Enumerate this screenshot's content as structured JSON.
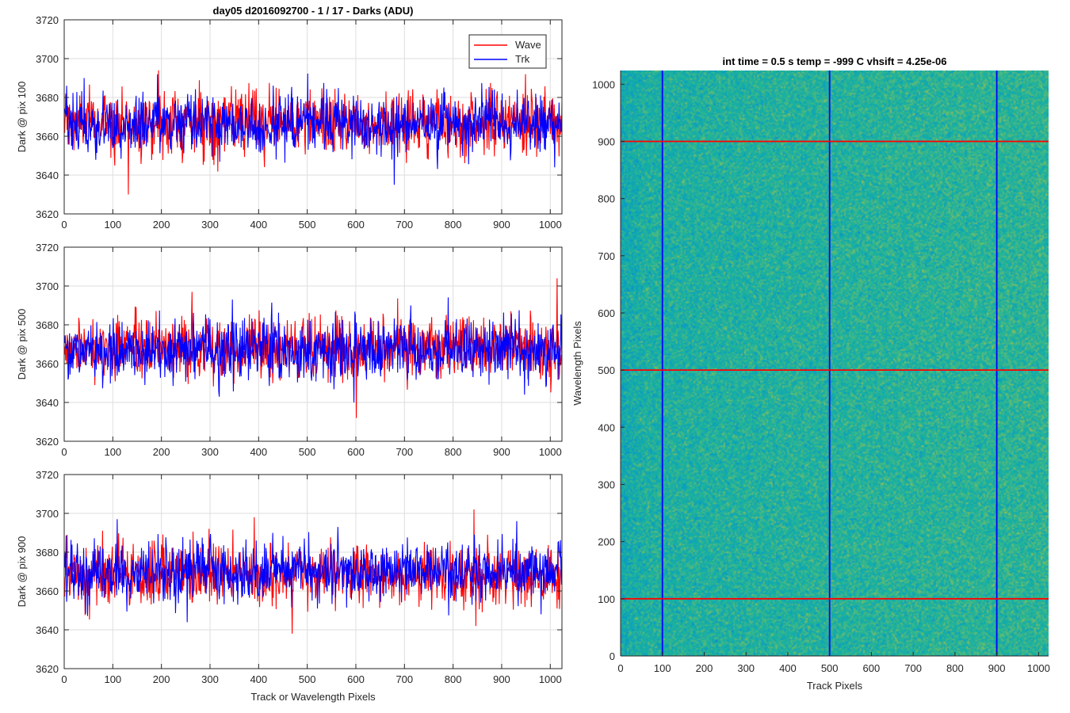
{
  "chart_data": [
    {
      "type": "line",
      "title": "day05 d2016092700 - 1 / 17 - Darks (ADU)",
      "xlabel": "",
      "ylabel": "Dark @ pix 100",
      "xlim": [
        0,
        1024
      ],
      "ylim": [
        3620,
        3720
      ],
      "xticks": [
        0,
        100,
        200,
        300,
        400,
        500,
        600,
        700,
        800,
        900,
        1000
      ],
      "yticks": [
        3620,
        3640,
        3660,
        3680,
        3700,
        3720
      ],
      "grid": true,
      "legend": "top-right",
      "series": [
        {
          "name": "Wave",
          "color": "#ff0000",
          "mean": 3667,
          "sd": 8,
          "extremes": [
            [
              131,
              3630
            ],
            [
              193,
              3694
            ],
            [
              948,
              3692
            ]
          ]
        },
        {
          "name": "Trk",
          "color": "#0000ff",
          "mean": 3666,
          "sd": 7.5,
          "extremes": [
            [
              678,
              3635
            ],
            [
              40,
              3690
            ],
            [
              1008,
              3644
            ]
          ]
        }
      ]
    },
    {
      "type": "line",
      "title": "",
      "xlabel": "",
      "ylabel": "Dark @ pix 500",
      "xlim": [
        0,
        1024
      ],
      "ylim": [
        3620,
        3720
      ],
      "xticks": [
        0,
        100,
        200,
        300,
        400,
        500,
        600,
        700,
        800,
        900,
        1000
      ],
      "yticks": [
        3620,
        3640,
        3660,
        3680,
        3700,
        3720
      ],
      "grid": true,
      "series": [
        {
          "name": "Wave",
          "color": "#ff0000",
          "mean": 3668,
          "sd": 8,
          "extremes": [
            [
              600,
              3632
            ],
            [
              262,
              3697
            ],
            [
              1013,
              3704
            ]
          ]
        },
        {
          "name": "Trk",
          "color": "#0000ff",
          "mean": 3667,
          "sd": 7.5,
          "extremes": [
            [
              595,
              3640
            ],
            [
              345,
              3693
            ],
            [
              990,
              3648
            ]
          ]
        }
      ]
    },
    {
      "type": "line",
      "title": "",
      "xlabel": "Track or Wavelength Pixels",
      "ylabel": "Dark @ pix 900",
      "xlim": [
        0,
        1024
      ],
      "ylim": [
        3620,
        3720
      ],
      "xticks": [
        0,
        100,
        200,
        300,
        400,
        500,
        600,
        700,
        800,
        900,
        1000
      ],
      "yticks": [
        3620,
        3640,
        3660,
        3680,
        3700,
        3720
      ],
      "grid": true,
      "series": [
        {
          "name": "Wave",
          "color": "#ff0000",
          "mean": 3668,
          "sd": 8,
          "extremes": [
            [
              468,
              3638
            ],
            [
              842,
              3702
            ],
            [
              390,
              3698
            ]
          ]
        },
        {
          "name": "Trk",
          "color": "#0000ff",
          "mean": 3670,
          "sd": 7.5,
          "extremes": [
            [
              108,
              3697
            ],
            [
              930,
              3696
            ],
            [
              980,
              3648
            ]
          ]
        }
      ]
    },
    {
      "type": "heatmap",
      "title": "int time = 0.5 s   temp = -999 C   vhsift = 4.25e-06",
      "xlabel": "Track Pixels",
      "ylabel": "Wavelength Pixels",
      "xlim": [
        0,
        1024
      ],
      "ylim": [
        0,
        1024
      ],
      "xticks": [
        0,
        100,
        200,
        300,
        400,
        500,
        600,
        700,
        800,
        900,
        1000
      ],
      "yticks": [
        0,
        100,
        200,
        300,
        400,
        500,
        600,
        700,
        800,
        900,
        1000
      ],
      "colormap": "parula",
      "vertical_markers": {
        "values": [
          100,
          500,
          900
        ],
        "color": "#0000ff"
      },
      "horizontal_markers": {
        "values": [
          100,
          500,
          900
        ],
        "color": "#ff0000"
      }
    }
  ]
}
